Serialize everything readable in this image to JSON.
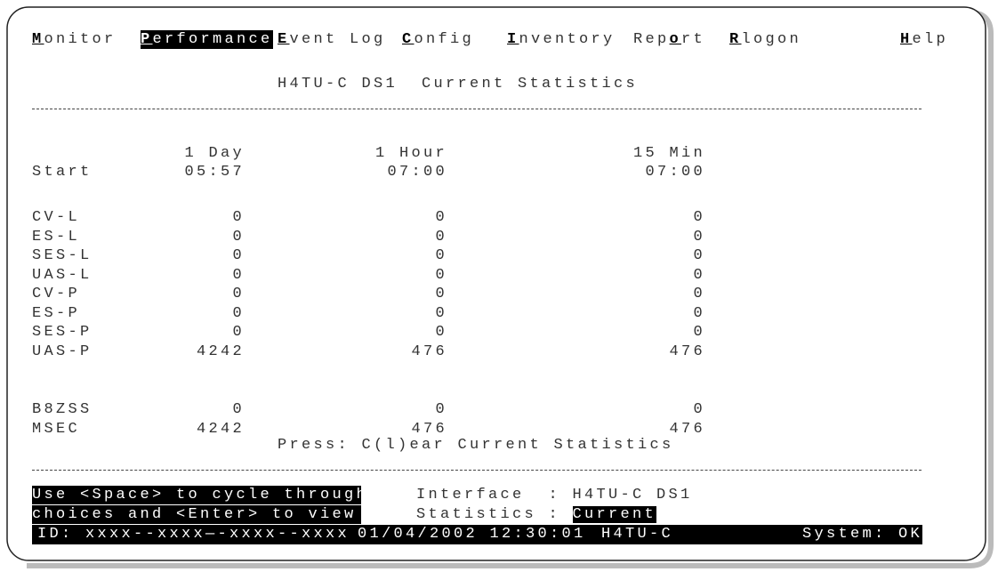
{
  "menu": [
    {
      "key": "M",
      "after": "onitor"
    },
    {
      "key": "P",
      "after": "erformance",
      "active": true
    },
    {
      "key": "E",
      "after": "vent Log"
    },
    {
      "key": "C",
      "after": "onfig"
    },
    {
      "key": "I",
      "after": "nventory"
    },
    {
      "before": "Rep",
      "key": "o",
      "after": "rt"
    },
    {
      "key": "R",
      "after": "logon"
    },
    {
      "key": "H",
      "after": "elp"
    }
  ],
  "title": "H4TU-C DS1  Current Statistics",
  "columns": [
    "1 Day",
    "1 Hour",
    "15 Min"
  ],
  "start": {
    "label": "Start",
    "values": [
      "05:57",
      "07:00",
      "07:00"
    ]
  },
  "rows": [
    {
      "label": "CV-L",
      "values": [
        0,
        0,
        0
      ]
    },
    {
      "label": "ES-L",
      "values": [
        0,
        0,
        0
      ]
    },
    {
      "label": "SES-L",
      "values": [
        0,
        0,
        0
      ]
    },
    {
      "label": "UAS-L",
      "values": [
        0,
        0,
        0
      ]
    },
    {
      "label": "CV-P",
      "values": [
        0,
        0,
        0
      ]
    },
    {
      "label": "ES-P",
      "values": [
        0,
        0,
        0
      ]
    },
    {
      "label": "SES-P",
      "values": [
        0,
        0,
        0
      ]
    },
    {
      "label": "UAS-P",
      "values": [
        4242,
        476,
        476
      ]
    },
    {
      "label": "B8ZSS",
      "values": [
        0,
        0,
        0
      ]
    },
    {
      "label": "MSEC",
      "values": [
        4242,
        476,
        476
      ]
    }
  ],
  "press": "Press: C(l)ear Current Statistics",
  "help": [
    "Use <Space> to cycle through",
    "choices and <Enter> to view"
  ],
  "fields": [
    {
      "label": "Interface  : ",
      "value": "H4TU-C DS1"
    },
    {
      "label": "Statistics : ",
      "value": "Current",
      "active": true
    }
  ],
  "status": {
    "id": "ID: xxxx--xxxx—-xxxx--xxxx",
    "datetime": "01/04/2002 12:30:01",
    "device": "H4TU-C",
    "system": "System: OK"
  }
}
